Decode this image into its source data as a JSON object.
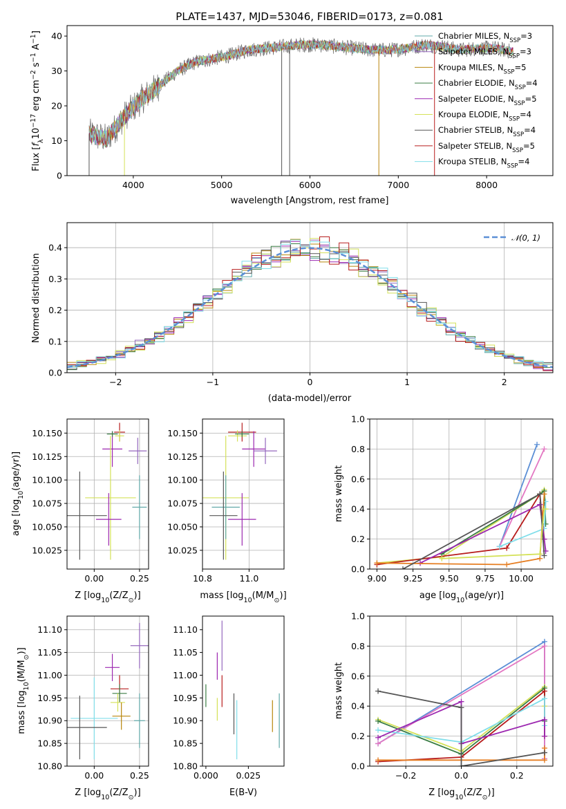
{
  "figure": {
    "title": "PLATE=1437, MJD=53046, FIBERID=0173, z=0.081"
  },
  "colors": {
    "model_palette": [
      "#5fa8a8",
      "#9467bd",
      "#b8860b",
      "#3a7d44",
      "#9c27b0",
      "#d4e157",
      "#555555",
      "#b71c1c",
      "#80deea"
    ],
    "mass_weight_palette": [
      "#5b8fd6",
      "#e377c2",
      "#d4e157",
      "#3a7d44",
      "#b71c1c",
      "#80deea",
      "#9c27b0",
      "#e67e22",
      "#555555"
    ],
    "gaussian": "#5b8fd6",
    "grid": "#b0b0b0"
  },
  "chart_data": [
    {
      "id": "spectrum",
      "type": "line",
      "title": "PLATE=1437, MJD=53046, FIBERID=0173, z=0.081",
      "xlabel": "wavelength [Angstrom, rest frame]",
      "ylabel": "Flux [f_λ 10^-17 erg cm^-2 s^-1 A^-1]",
      "ylabel_parts": {
        "a": "Flux [",
        "b": "f",
        "c": "λ",
        "d": "10",
        "e": "−17",
        "f": " erg cm",
        "g": "−2",
        "h": " s",
        "i": "−1",
        "j": " A",
        "k": "−1",
        "l": "]"
      },
      "xlim": [
        3250,
        8750
      ],
      "ylim": [
        0,
        43
      ],
      "xticks": [
        4000,
        5000,
        6000,
        7000,
        8000
      ],
      "yticks": [
        0,
        10,
        20,
        30,
        40
      ],
      "grid": false,
      "legend_position": "top-right",
      "continuum": {
        "x": [
          3500,
          3700,
          3900,
          4000,
          4100,
          4300,
          4500,
          4700,
          4900,
          5100,
          5300,
          5500,
          5700,
          5900,
          6100,
          6300,
          6500,
          6700,
          6900,
          7100,
          7300,
          7500,
          7700,
          7900,
          8100,
          8300
        ],
        "y": [
          12,
          10.5,
          17,
          19.5,
          22,
          26,
          30,
          32.5,
          33.5,
          34.5,
          36,
          36.5,
          37,
          37.5,
          37.5,
          37,
          36.5,
          36,
          36,
          36.5,
          37.5,
          37,
          36,
          36.5,
          36.5,
          35.5
        ]
      },
      "spike_lines": [
        {
          "x": 3500,
          "model": 6
        },
        {
          "x": 3900,
          "model": 5
        },
        {
          "x": 5680,
          "model": 6
        },
        {
          "x": 5770,
          "model": 6
        },
        {
          "x": 6780,
          "model": 2
        },
        {
          "x": 7410,
          "model": 7
        }
      ],
      "models": [
        {
          "label_text": "Chabrier MILES, N",
          "sub": "SSP",
          "suffix": "=3"
        },
        {
          "label_text": "Salpeter MILES, N",
          "sub": "SSP",
          "suffix": "=3"
        },
        {
          "label_text": "Kroupa MILES, N",
          "sub": "SSP",
          "suffix": "=5"
        },
        {
          "label_text": "Chabrier ELODIE, N",
          "sub": "SSP",
          "suffix": "=4"
        },
        {
          "label_text": "Salpeter ELODIE, N",
          "sub": "SSP",
          "suffix": "=5"
        },
        {
          "label_text": "Kroupa ELODIE, N",
          "sub": "SSP",
          "suffix": "=4"
        },
        {
          "label_text": "Chabrier STELIB, N",
          "sub": "SSP",
          "suffix": "=4"
        },
        {
          "label_text": "Salpeter STELIB, N",
          "sub": "SSP",
          "suffix": "=5"
        },
        {
          "label_text": "Kroupa STELIB, N",
          "sub": "SSP",
          "suffix": "=4"
        }
      ]
    },
    {
      "id": "residuals",
      "type": "histogram",
      "xlabel": "(data-model)/error",
      "ylabel": "Normed distribution",
      "xlim": [
        -2.5,
        2.5
      ],
      "ylim": [
        0,
        0.48
      ],
      "xticks": [
        -2,
        -1,
        0,
        1,
        2
      ],
      "yticks": [
        0.0,
        0.1,
        0.2,
        0.3,
        0.4
      ],
      "grid": true,
      "legend_position": "top-right",
      "gaussian_label": "𝒩(0, 1)",
      "bin_width": 0.1,
      "bin_start": -2.5
    },
    {
      "id": "age_vs_Z",
      "type": "errorbar",
      "xlabel_parts": {
        "a": "Z [log",
        "b": "10",
        "c": "(Z/Z",
        "d": "⊙",
        "e": ")]"
      },
      "ylabel_parts": {
        "a": "age  [log",
        "b": "10",
        "c": "(age/yr)]"
      },
      "xlim": [
        -0.15,
        0.3
      ],
      "ylim": [
        10.005,
        10.165
      ],
      "xticks": [
        0.0,
        0.25
      ],
      "yticks": [
        10.025,
        10.05,
        10.075,
        10.1,
        10.125,
        10.15
      ],
      "grid": true,
      "points": [
        {
          "x": 0.14,
          "y": 10.151,
          "xerr": 0.03,
          "yerr": 0.01,
          "c": 7
        },
        {
          "x": 0.14,
          "y": 10.147,
          "xerr": 0.025,
          "yerr": 0.006,
          "c": 5
        },
        {
          "x": 0.1,
          "y": 10.133,
          "xerr": 0.055,
          "yerr": 0.019,
          "c": 4
        },
        {
          "x": 0.24,
          "y": 10.131,
          "xerr": 0.05,
          "yerr": 0.014,
          "c": 1
        },
        {
          "x": 0.1,
          "y": 10.149,
          "xerr": 0.03,
          "yerr": 0.003,
          "c": 3
        },
        {
          "x": 0.09,
          "y": 10.081,
          "xerr": 0.14,
          "yerr": 0.066,
          "c": 5
        },
        {
          "x": 0.25,
          "y": 10.071,
          "xerr": 0.04,
          "yerr": 0.034,
          "c": 0
        },
        {
          "x": -0.08,
          "y": 10.062,
          "xerr": 0.15,
          "yerr": 0.047,
          "c": 6
        },
        {
          "x": 0.08,
          "y": 10.058,
          "xerr": 0.07,
          "yerr": 0.028,
          "c": 4
        }
      ]
    },
    {
      "id": "age_vs_mass",
      "type": "errorbar",
      "xlabel_parts": {
        "a": "mass [log",
        "b": "10",
        "c": "(M/M",
        "d": "⊙",
        "e": ")]"
      },
      "xlim": [
        10.8,
        11.15
      ],
      "ylim": [
        10.005,
        10.165
      ],
      "xticks": [
        10.8,
        11.0
      ],
      "yticks": [
        10.025,
        10.05,
        10.075,
        10.1,
        10.125,
        10.15
      ],
      "grid": true,
      "points": [
        {
          "x": 10.97,
          "y": 10.151,
          "xerr": 0.06,
          "yerr": 0.01,
          "c": 7
        },
        {
          "x": 10.95,
          "y": 10.147,
          "xerr": 0.04,
          "yerr": 0.006,
          "c": 5
        },
        {
          "x": 11.02,
          "y": 10.133,
          "xerr": 0.05,
          "yerr": 0.019,
          "c": 4
        },
        {
          "x": 11.07,
          "y": 10.131,
          "xerr": 0.05,
          "yerr": 0.014,
          "c": 1
        },
        {
          "x": 10.97,
          "y": 10.149,
          "xerr": 0.03,
          "yerr": 0.003,
          "c": 3
        },
        {
          "x": 10.9,
          "y": 10.081,
          "xerr": 0.1,
          "yerr": 0.066,
          "c": 5
        },
        {
          "x": 10.9,
          "y": 10.071,
          "xerr": 0.06,
          "yerr": 0.034,
          "c": 0
        },
        {
          "x": 10.89,
          "y": 10.062,
          "xerr": 0.06,
          "yerr": 0.047,
          "c": 6
        },
        {
          "x": 10.97,
          "y": 10.058,
          "xerr": 0.06,
          "yerr": 0.028,
          "c": 4
        }
      ]
    },
    {
      "id": "weight_vs_age",
      "type": "line",
      "xlabel_parts": {
        "a": "age  [log",
        "b": "10",
        "c": "(age/yr)]"
      },
      "ylabel": "mass weight",
      "xlim": [
        8.95,
        10.22
      ],
      "ylim": [
        0,
        1.0
      ],
      "xticks": [
        9.0,
        9.25,
        9.5,
        9.75,
        10.0
      ],
      "yticks": [
        0.0,
        0.2,
        0.4,
        0.6,
        0.8,
        1.0
      ],
      "grid": true,
      "series": [
        {
          "c": 0,
          "x": [
            9.85,
            10.11
          ],
          "y": [
            0.15,
            0.83
          ]
        },
        {
          "c": 1,
          "x": [
            9.85,
            10.16
          ],
          "y": [
            0.15,
            0.8
          ]
        },
        {
          "c": 2,
          "x": [
            9.0,
            9.45,
            10.13,
            10.16,
            10.17
          ],
          "y": [
            0.04,
            0.08,
            0.5,
            0.53,
            0.4
          ]
        },
        {
          "c": 3,
          "x": [
            9.45,
            10.13,
            10.16,
            10.17
          ],
          "y": [
            0.1,
            0.5,
            0.52,
            0.3
          ]
        },
        {
          "c": 4,
          "x": [
            9.0,
            9.9,
            10.13,
            10.16
          ],
          "y": [
            0.03,
            0.14,
            0.5,
            0.2
          ]
        },
        {
          "c": 5,
          "x": [
            9.85,
            10.16,
            10.17
          ],
          "y": [
            0.15,
            0.27,
            0.45
          ]
        },
        {
          "c": 6,
          "x": [
            9.3,
            10.13,
            10.16,
            10.17
          ],
          "y": [
            0.04,
            0.43,
            0.2,
            0.12
          ]
        },
        {
          "c": 7,
          "x": [
            9.0,
            9.9,
            10.13,
            10.16
          ],
          "y": [
            0.04,
            0.03,
            0.07,
            0.5
          ]
        },
        {
          "c": 8,
          "x": [
            9.18,
            10.13,
            10.16
          ],
          "y": [
            0.0,
            0.5,
            0.09
          ]
        },
        {
          "c": 2,
          "x": [
            9.45,
            10.13,
            10.16
          ],
          "y": [
            0.07,
            0.1,
            0.4
          ]
        }
      ]
    },
    {
      "id": "mass_vs_Z",
      "type": "errorbar",
      "xlabel_parts": {
        "a": "Z [log",
        "b": "10",
        "c": "(Z/Z",
        "d": "⊙",
        "e": ")]"
      },
      "ylabel_parts": {
        "a": "mass [log",
        "b": "10",
        "c": "(M/M",
        "d": "⊙",
        "e": ")]"
      },
      "xlim": [
        -0.15,
        0.3
      ],
      "ylim": [
        10.8,
        11.13
      ],
      "xticks": [
        0.0,
        0.25
      ],
      "yticks": [
        10.8,
        10.85,
        10.9,
        10.95,
        11.0,
        11.05,
        11.1
      ],
      "grid": true,
      "points": [
        {
          "x": 0.25,
          "y": 11.065,
          "xerr": 0.05,
          "yerr": 0.05,
          "c": 1
        },
        {
          "x": 0.1,
          "y": 11.017,
          "xerr": 0.04,
          "yerr": 0.03,
          "c": 4
        },
        {
          "x": 0.14,
          "y": 10.97,
          "xerr": 0.05,
          "yerr": 0.03,
          "c": 7
        },
        {
          "x": 0.14,
          "y": 10.96,
          "xerr": 0.04,
          "yerr": 0.02,
          "c": 3
        },
        {
          "x": 0.13,
          "y": 10.94,
          "xerr": 0.04,
          "yerr": 0.02,
          "c": 5
        },
        {
          "x": 0.15,
          "y": 10.91,
          "xerr": 0.05,
          "yerr": 0.03,
          "c": 2
        },
        {
          "x": 0.25,
          "y": 10.9,
          "xerr": 0.03,
          "yerr": 0.06,
          "c": 0
        },
        {
          "x": 0.0,
          "y": 10.905,
          "xerr": 0.13,
          "yerr": 0.09,
          "c": 8
        },
        {
          "x": -0.08,
          "y": 10.885,
          "xerr": 0.15,
          "yerr": 0.07,
          "c": 6
        }
      ]
    },
    {
      "id": "mass_vs_ebv",
      "type": "errorbar",
      "xlabel": "E(B-V)",
      "xlim": [
        -0.002,
        0.046
      ],
      "ylim": [
        10.8,
        11.13
      ],
      "xticks": [
        0.0,
        0.025
      ],
      "yticks": [
        10.8,
        10.85,
        10.9,
        10.95,
        11.0,
        11.05,
        11.1
      ],
      "grid": false,
      "points": [
        {
          "x": 0.0,
          "y": 10.955,
          "xerr": 0,
          "yerr": 0.025,
          "c": 3
        },
        {
          "x": 0.0067,
          "y": 10.925,
          "xerr": 0,
          "yerr": 0.025,
          "c": 5
        },
        {
          "x": 0.0067,
          "y": 11.02,
          "xerr": 0,
          "yerr": 0.03,
          "c": 4
        },
        {
          "x": 0.0095,
          "y": 11.065,
          "xerr": 0,
          "yerr": 0.055,
          "c": 1
        },
        {
          "x": 0.0095,
          "y": 10.965,
          "xerr": 0,
          "yerr": 0.035,
          "c": 7
        },
        {
          "x": 0.0165,
          "y": 10.915,
          "xerr": 0,
          "yerr": 0.045,
          "c": 6
        },
        {
          "x": 0.0182,
          "y": 10.88,
          "xerr": 0,
          "yerr": 0.065,
          "c": 8
        },
        {
          "x": 0.0392,
          "y": 10.91,
          "xerr": 0,
          "yerr": 0.035,
          "c": 2
        },
        {
          "x": 0.0432,
          "y": 10.9,
          "xerr": 0,
          "yerr": 0.06,
          "c": 0
        }
      ]
    },
    {
      "id": "weight_vs_Z",
      "type": "line",
      "xlabel_parts": {
        "a": "Z [log",
        "b": "10",
        "c": "(Z/Z",
        "d": "⊙",
        "e": ")]"
      },
      "ylabel": "mass weight",
      "xlim": [
        -0.33,
        0.33
      ],
      "ylim": [
        0,
        1.0
      ],
      "xticks": [
        -0.2,
        0.0,
        0.2
      ],
      "yticks": [
        0.0,
        0.2,
        0.4,
        0.6,
        0.8,
        1.0
      ],
      "grid": true,
      "series": [
        {
          "c": 0,
          "x": [
            -0.3,
            0.3,
            0.3
          ],
          "y": [
            0.15,
            0.83,
            0.05
          ]
        },
        {
          "c": 1,
          "x": [
            -0.3,
            0.3,
            0.3
          ],
          "y": [
            0.15,
            0.8,
            0.05
          ]
        },
        {
          "c": 2,
          "x": [
            -0.3,
            0.0,
            0.3,
            0.3
          ],
          "y": [
            0.31,
            0.1,
            0.53,
            0.4
          ]
        },
        {
          "c": 3,
          "x": [
            -0.3,
            0.0,
            0.3,
            0.3
          ],
          "y": [
            0.3,
            0.08,
            0.52,
            0.3
          ]
        },
        {
          "c": 4,
          "x": [
            -0.3,
            0.0,
            0.3,
            0.3
          ],
          "y": [
            0.03,
            0.06,
            0.5,
            0.2
          ]
        },
        {
          "c": 5,
          "x": [
            -0.3,
            0.0,
            0.3,
            0.3
          ],
          "y": [
            0.24,
            0.16,
            0.45,
            0.27
          ]
        },
        {
          "c": 6,
          "x": [
            -0.3,
            0.0,
            0.0,
            0.3,
            0.3
          ],
          "y": [
            0.19,
            0.43,
            0.15,
            0.31,
            0.2
          ]
        },
        {
          "c": 7,
          "x": [
            -0.3,
            0.3,
            0.3
          ],
          "y": [
            0.04,
            0.04,
            0.12
          ]
        },
        {
          "c": 8,
          "x": [
            -0.3,
            0.0,
            0.0,
            0.3,
            0.3
          ],
          "y": [
            0.5,
            0.39,
            0.0,
            0.09,
            0.09
          ]
        }
      ]
    }
  ]
}
